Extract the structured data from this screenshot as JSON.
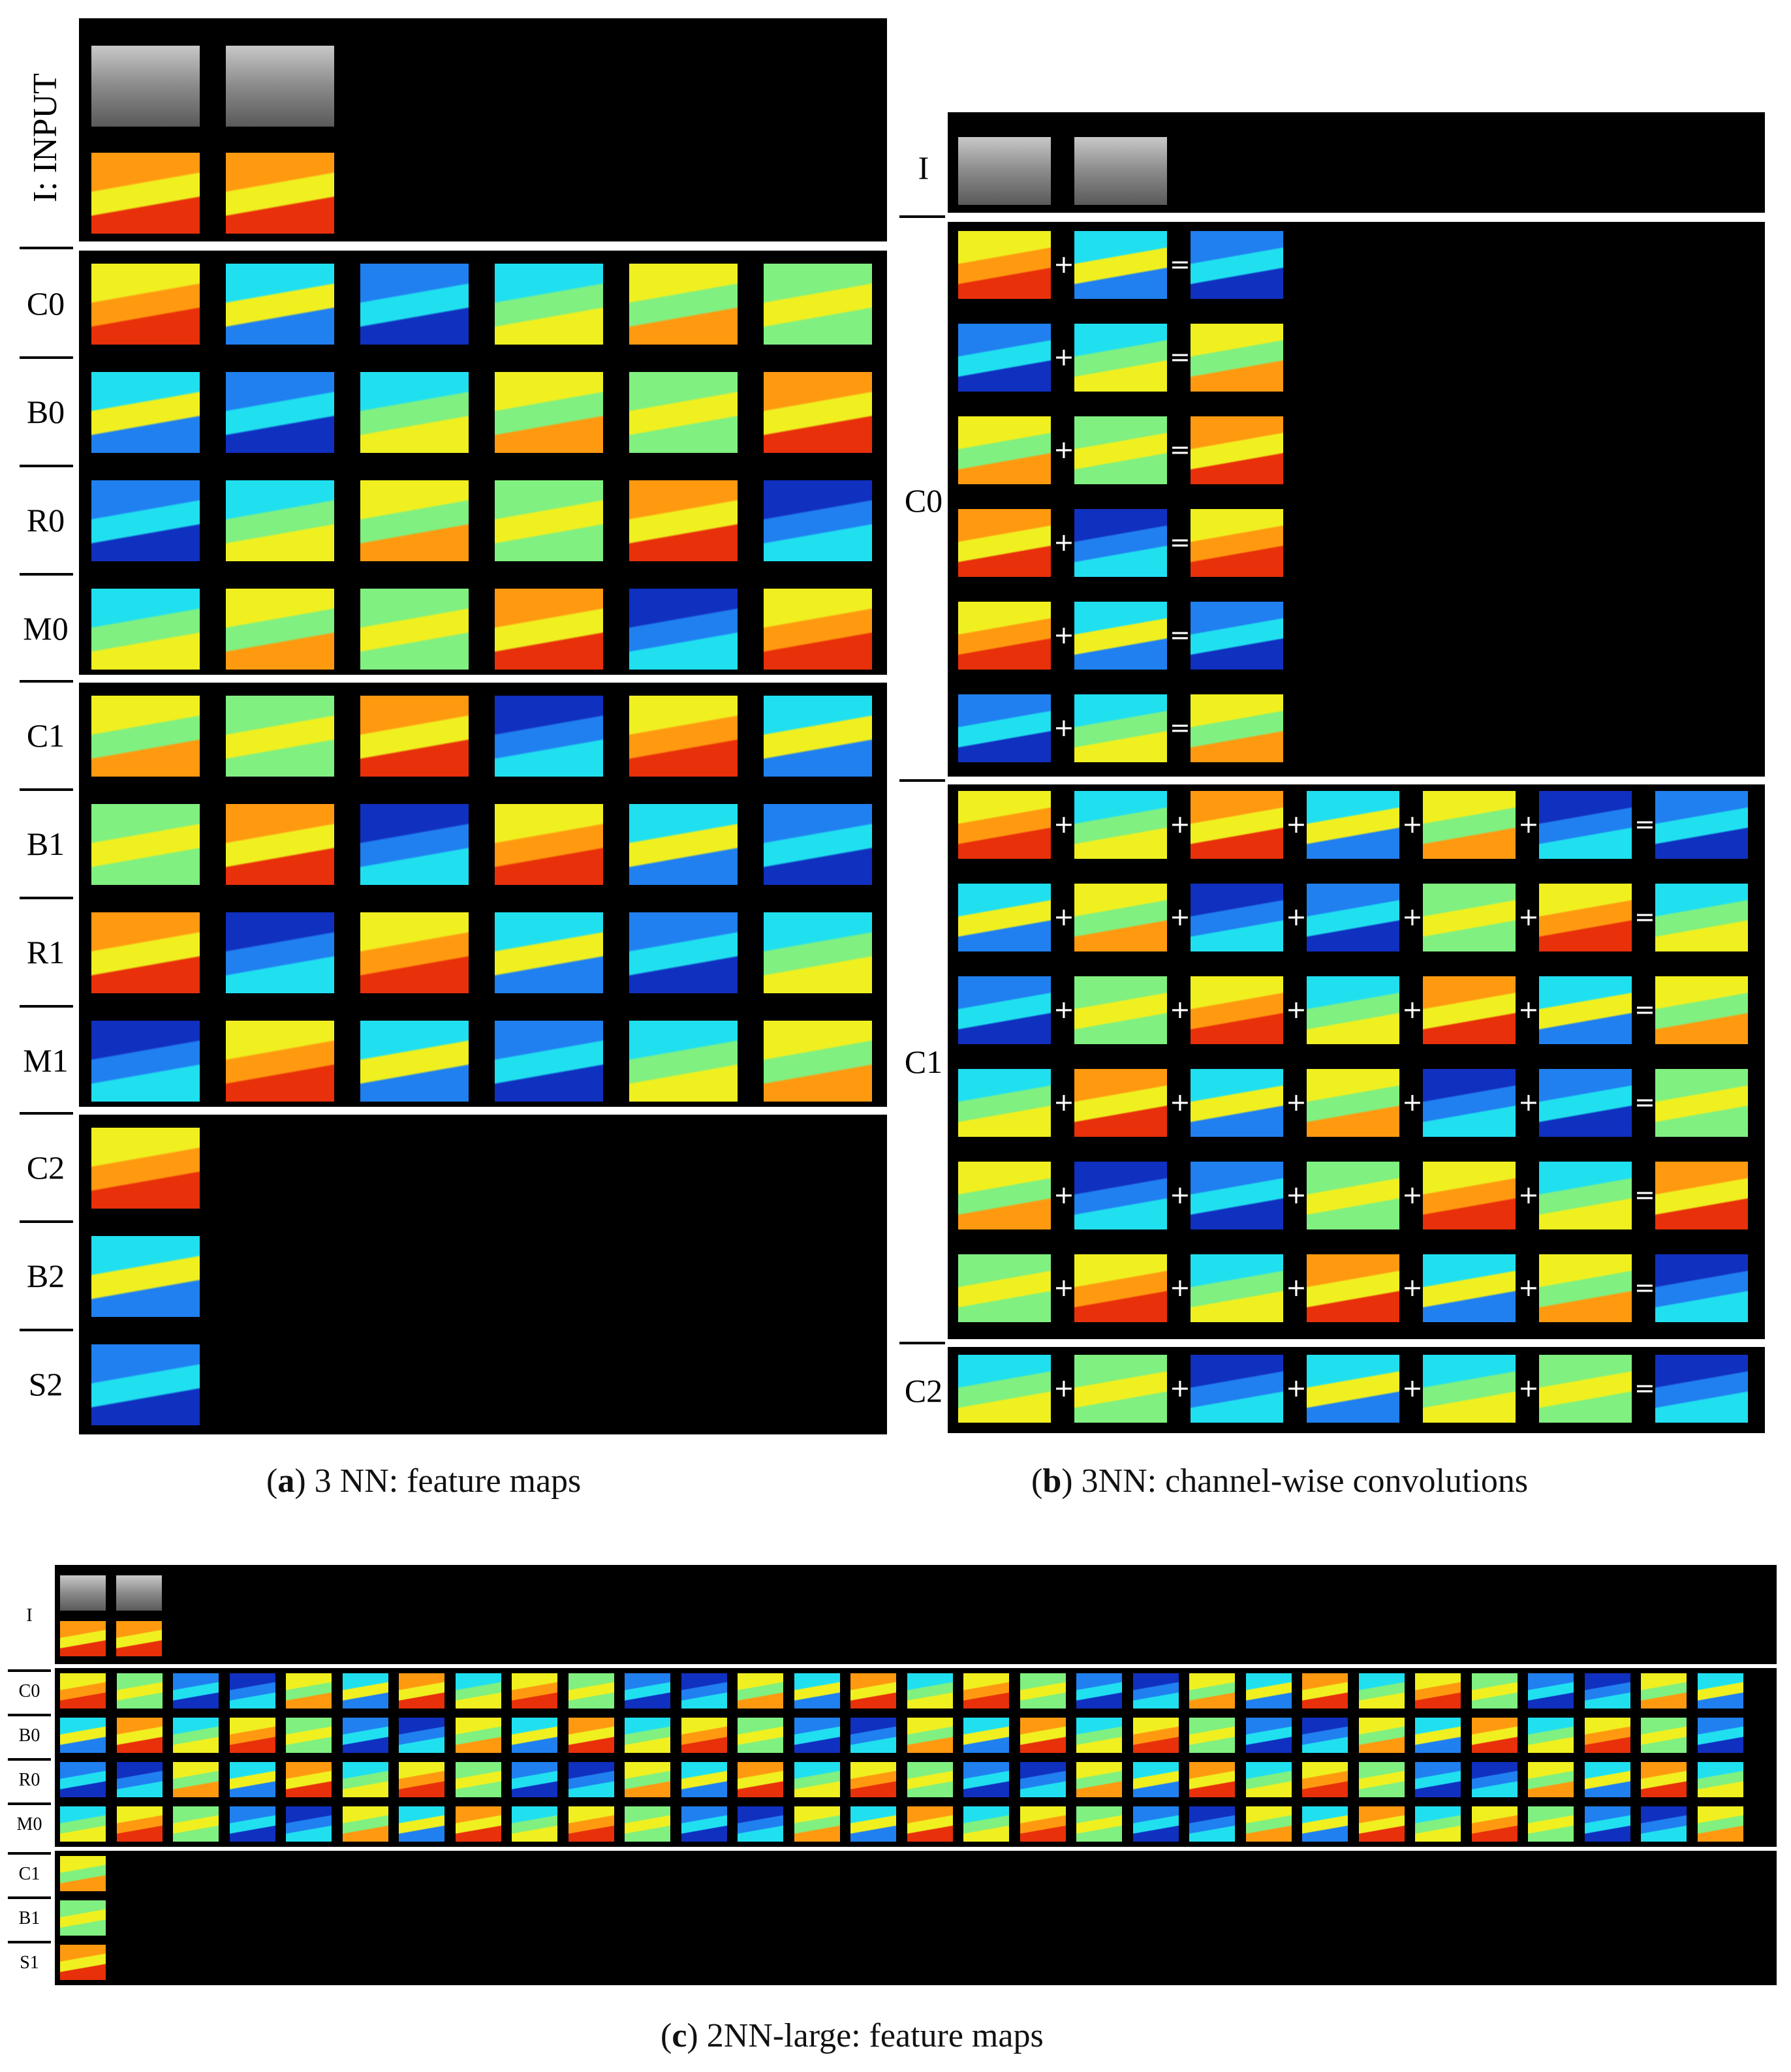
{
  "panel_a": {
    "rows": [
      "C0",
      "B0",
      "R0",
      "M0",
      "C1",
      "B1",
      "R1",
      "M1",
      "C2",
      "B2",
      "S2"
    ],
    "input_label": "I: INPUT",
    "caption_letter": "a",
    "caption_text": " 3 NN: feature maps"
  },
  "panel_b": {
    "rows": [
      "I",
      "C0",
      "C1",
      "C2"
    ],
    "plus": "+",
    "equals": "=",
    "caption_letter": "b",
    "caption_text": " 3NN: channel-wise convolutions"
  },
  "panel_c": {
    "rows": [
      "I",
      "C0",
      "B0",
      "R0",
      "M0",
      "C1",
      "B1",
      "S1"
    ],
    "caption_letter": "c",
    "caption_text": " 2NN-large: feature maps"
  },
  "colors": {
    "background": "#000000",
    "jet_red": "#e8300a",
    "jet_orange": "#ff9a10",
    "jet_yellow": "#f0f020",
    "jet_green": "#80f080",
    "jet_cyan": "#20e0f0",
    "jet_blue": "#2080f0",
    "jet_darkblue": "#1030c0",
    "gray": "#9a9a9a"
  }
}
